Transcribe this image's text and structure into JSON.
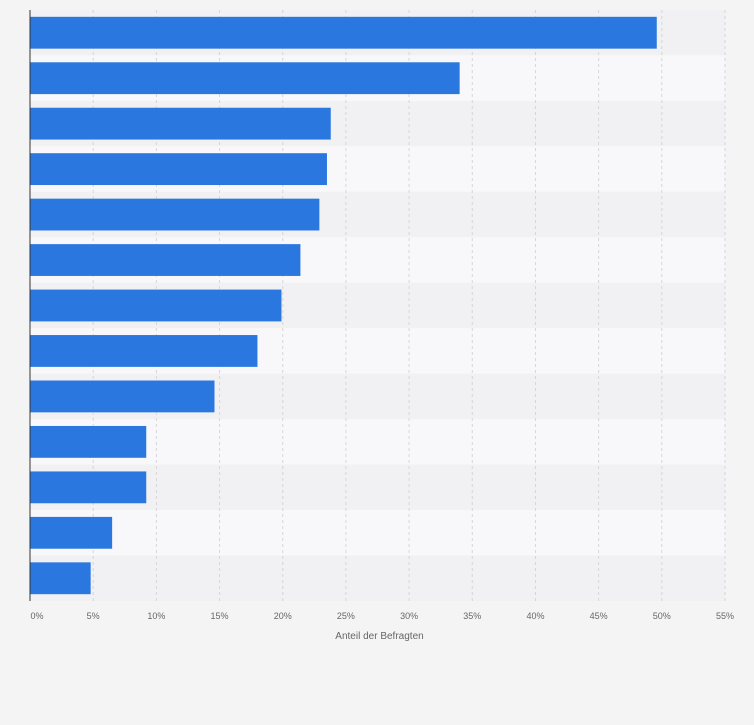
{
  "chart_data": {
    "type": "bar",
    "orientation": "horizontal",
    "categories": [
      "",
      "",
      "",
      "",
      "",
      "",
      "",
      "",
      "",
      "",
      "",
      "",
      ""
    ],
    "values": [
      49.6,
      34.0,
      23.8,
      23.5,
      22.9,
      21.4,
      19.9,
      18.0,
      14.6,
      9.2,
      9.2,
      6.5,
      4.8
    ],
    "title": "",
    "xlabel": "Anteil der Befragten",
    "ylabel": "",
    "xlim": [
      0,
      55
    ],
    "ticks": [
      "0%",
      "5%",
      "10%",
      "15%",
      "20%",
      "25%",
      "30%",
      "35%",
      "40%",
      "45%",
      "50%",
      "55%"
    ],
    "grid": true,
    "bar_color": "#2a77e0"
  }
}
